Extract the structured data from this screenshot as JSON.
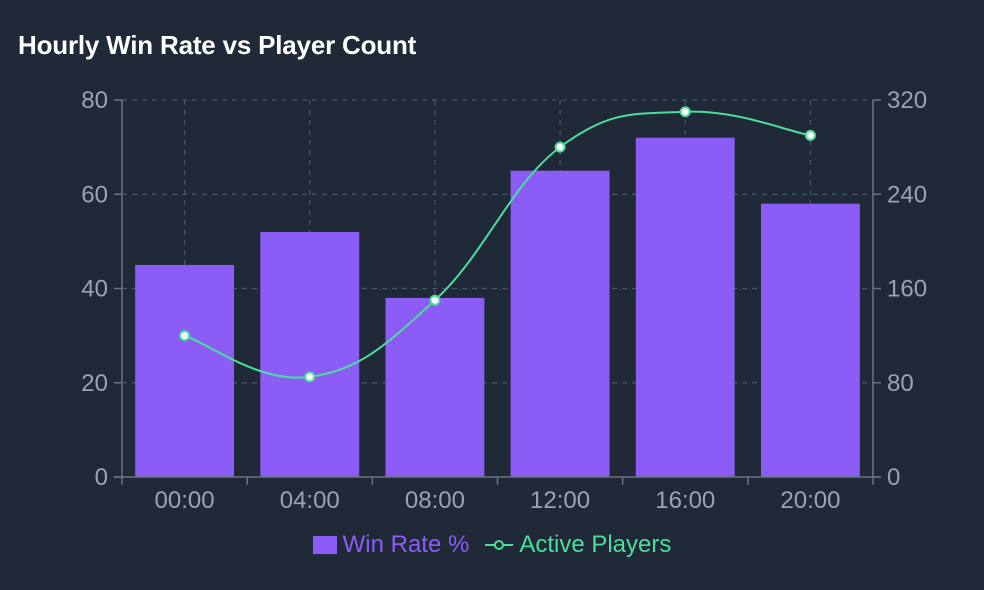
{
  "title": "Hourly Win Rate vs Player Count",
  "colors": {
    "bar": "#8b5cf6",
    "line": "#4ade9a",
    "grid": "#475569",
    "axis": "#6b7280",
    "tick": "#9ca3af",
    "background": "#1f2937"
  },
  "chart_data": {
    "type": "bar",
    "title": "Hourly Win Rate vs Player Count",
    "categories": [
      "00:00",
      "04:00",
      "08:00",
      "12:00",
      "16:00",
      "20:00"
    ],
    "series": [
      {
        "name": "Win Rate %",
        "type": "bar",
        "axis": "left",
        "values": [
          45,
          52,
          38,
          65,
          72,
          58
        ]
      },
      {
        "name": "Active Players",
        "type": "line",
        "axis": "right",
        "values": [
          120,
          85,
          150,
          280,
          310,
          290
        ]
      }
    ],
    "y_left": {
      "min": 0,
      "max": 80,
      "ticks": [
        0,
        20,
        40,
        60,
        80
      ]
    },
    "y_right": {
      "min": 0,
      "max": 320,
      "ticks": [
        0,
        80,
        160,
        240,
        320
      ]
    },
    "grid": true,
    "legend": "bottom"
  }
}
